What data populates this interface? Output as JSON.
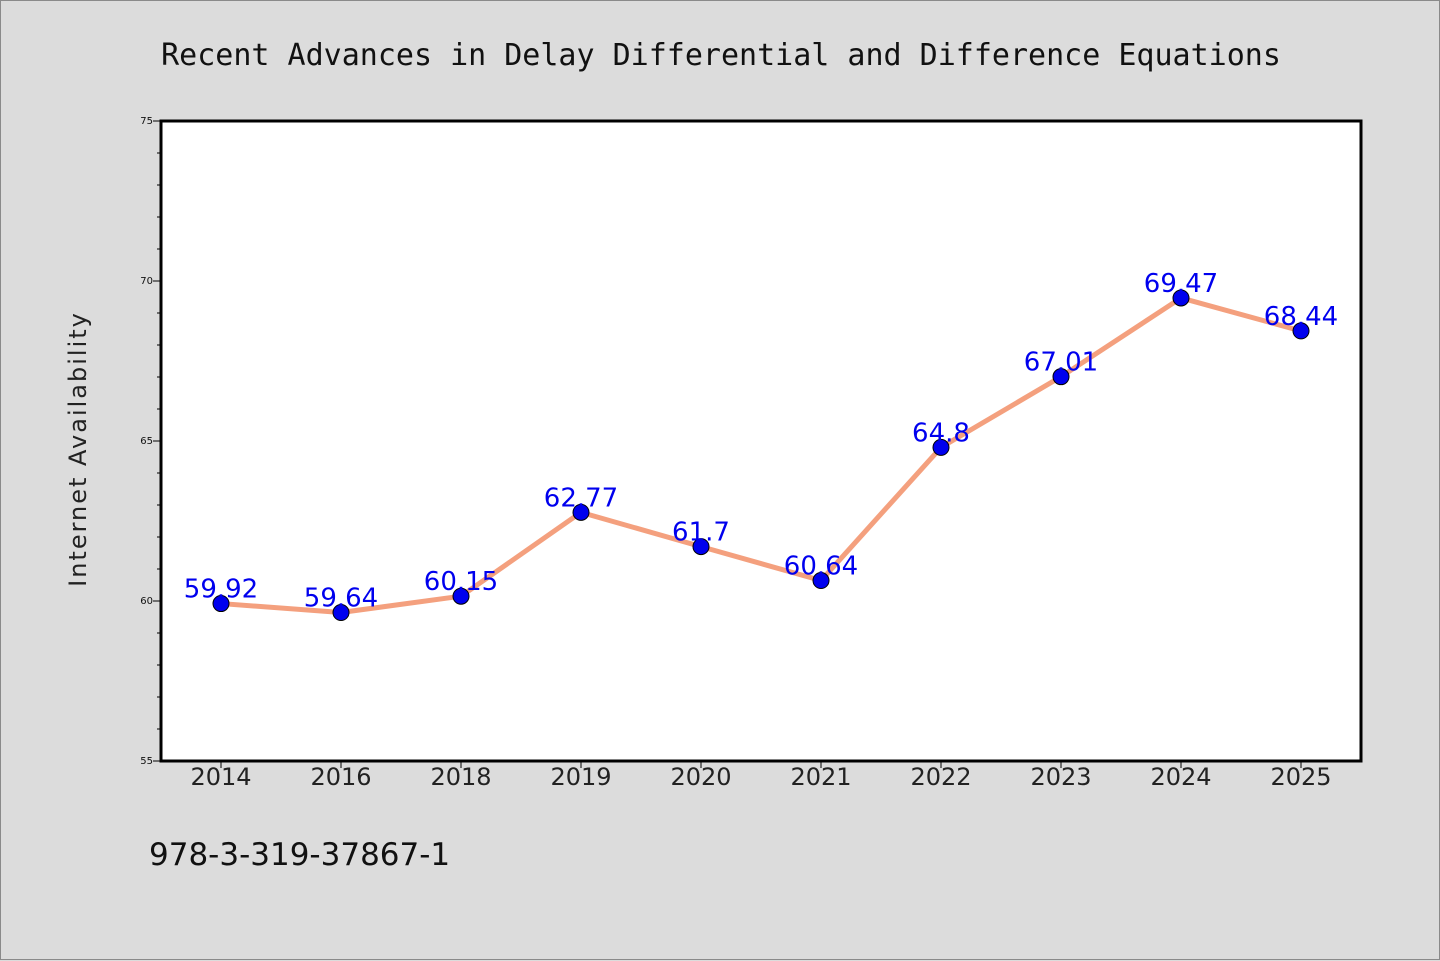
{
  "chart_data": {
    "type": "line",
    "title": "Recent Advances in Delay Differential and Difference Equations",
    "xlabel": "",
    "ylabel": "Internet Availability",
    "categories": [
      "2014",
      "2016",
      "2018",
      "2019",
      "2020",
      "2021",
      "2022",
      "2023",
      "2024",
      "2025"
    ],
    "series": [
      {
        "values": [
          59.92,
          59.64,
          60.15,
          62.77,
          61.7,
          60.64,
          64.8,
          67.01,
          69.47,
          68.44
        ],
        "labels": [
          "59.92",
          "59.64",
          "60.15",
          "62.77",
          "61.7",
          "60.64",
          "64.8",
          "67.01",
          "69.47",
          "68.44"
        ],
        "line_color": "#f4a07e",
        "marker_color": "#0000ee"
      }
    ],
    "ylim": [
      55,
      75
    ],
    "yticks": [
      55,
      60,
      65,
      70,
      75
    ],
    "ytick_labels": [
      "55",
      "60",
      "65",
      "70",
      "75"
    ],
    "grid": false,
    "legend": "none",
    "plot_background": "#ffffff",
    "figure_background": "#dcdcdc"
  },
  "footer": {
    "text": "978-3-319-37867-1"
  }
}
